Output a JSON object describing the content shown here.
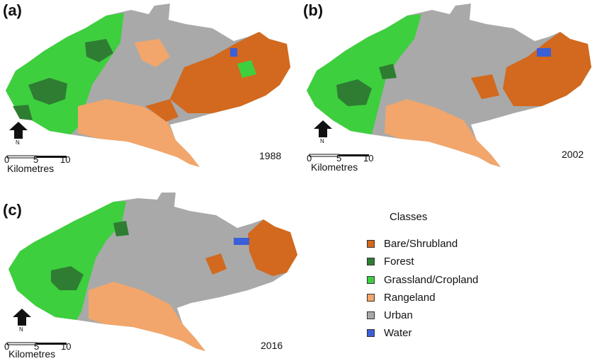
{
  "panels": [
    {
      "label": "(a)",
      "year": "1988"
    },
    {
      "label": "(b)",
      "year": "2002"
    },
    {
      "label": "(c)",
      "year": "2016"
    }
  ],
  "north_letter": "N",
  "scale": {
    "ticks": [
      "0",
      "5",
      "10"
    ],
    "unit": "Kilometres"
  },
  "legend": {
    "title": "Classes",
    "items": [
      {
        "label": "Bare/Shrubland",
        "color": "#d2691e"
      },
      {
        "label": "Forest",
        "color": "#2e7d32"
      },
      {
        "label": "Grassland/Cropland",
        "color": "#3ecf3e"
      },
      {
        "label": "Rangeland",
        "color": "#f2a66b"
      },
      {
        "label": "Urban",
        "color": "#a9a9a9"
      },
      {
        "label": "Water",
        "color": "#3a5fd6"
      }
    ]
  }
}
